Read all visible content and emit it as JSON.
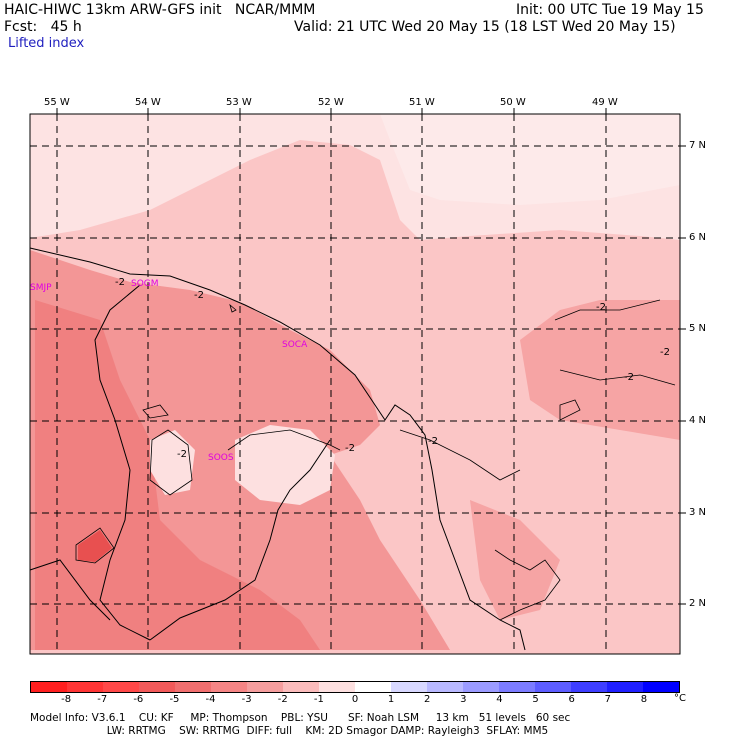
{
  "header": {
    "title_left": "HAIC-HIWC 13km ARW-GFS init   NCAR/MMM",
    "init": "Init: 00 UTC Tue 19 May 15",
    "fcst": "Fcst:   45 h",
    "valid": "Valid: 21 UTC Wed 20 May 15 (18 LST Wed 20 May 15)",
    "field": "Lifted index"
  },
  "lon_labels": [
    "55 W",
    "54 W",
    "53 W",
    "52 W",
    "51 W",
    "50 W",
    "49 W"
  ],
  "lat_labels": [
    "7 N",
    "6 N",
    "5 N",
    "4 N",
    "3 N",
    "2 N"
  ],
  "stations": [
    "SMJP",
    "SOGM",
    "SOCA",
    "SOOS"
  ],
  "contour_label": "-2",
  "legend": {
    "labels": [
      "-8",
      "-7",
      "-6",
      "-5",
      "-4",
      "-3",
      "-2",
      "-1",
      "0",
      "1",
      "2",
      "3",
      "4",
      "5",
      "6",
      "7",
      "8"
    ],
    "unit": "°C",
    "colors": [
      "#ff1f1f",
      "#ff3535",
      "#ff4848",
      "#f25a5a",
      "#f16f6f",
      "#f58585",
      "#f59e9e",
      "#fbbcbc",
      "#fde0e0",
      "#ffffff",
      "#d8d8ff",
      "#b9b9ff",
      "#9b9bff",
      "#7c7cff",
      "#5d5dff",
      "#3e3eff",
      "#1f1fff",
      "#0000ff"
    ]
  },
  "model_info": {
    "line1": "Model Info: V3.6.1    CU: KF     MP: Thompson    PBL: YSU      SF: Noah LSM     13 km   51 levels   60 sec",
    "line2": "                       LW: RRTMG    SW: RRTMG  DIFF: full    KM: 2D Smagor DAMP: Rayleigh3  SFLAY: MM5"
  }
}
